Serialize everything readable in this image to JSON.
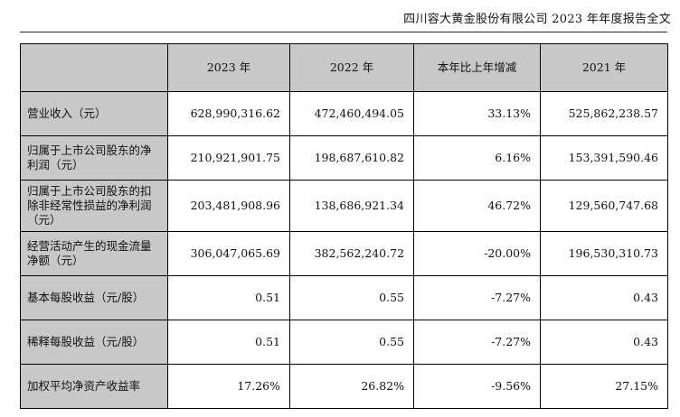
{
  "header": {
    "title": "四川容大黄金股份有限公司 2023 年年度报告全文"
  },
  "table": {
    "columns": [
      "",
      "2023 年",
      "2022 年",
      "本年比上年增减",
      "2021 年"
    ],
    "rows": [
      {
        "label": "营业收入（元）",
        "values": [
          "628,990,316.62",
          "472,460,494.05",
          "33.13%",
          "525,862,238.57"
        ]
      },
      {
        "label": "归属于上市公司股东的净利润（元）",
        "values": [
          "210,921,901.75",
          "198,687,610.82",
          "6.16%",
          "153,391,590.46"
        ]
      },
      {
        "label": "归属于上市公司股东的扣除非经常性损益的净利润（元）",
        "values": [
          "203,481,908.96",
          "138,686,921.34",
          "46.72%",
          "129,560,747.68"
        ]
      },
      {
        "label": "经营活动产生的现金流量净额（元）",
        "values": [
          "306,047,065.69",
          "382,562,240.72",
          "-20.00%",
          "196,530,310.73"
        ]
      },
      {
        "label": "基本每股收益（元/股）",
        "values": [
          "0.51",
          "0.55",
          "-7.27%",
          "0.43"
        ]
      },
      {
        "label": "稀释每股收益（元/股）",
        "values": [
          "0.51",
          "0.55",
          "-7.27%",
          "0.43"
        ]
      },
      {
        "label": "加权平均净资产收益率",
        "values": [
          "17.26%",
          "26.82%",
          "-9.56%",
          "27.15%"
        ]
      }
    ]
  }
}
